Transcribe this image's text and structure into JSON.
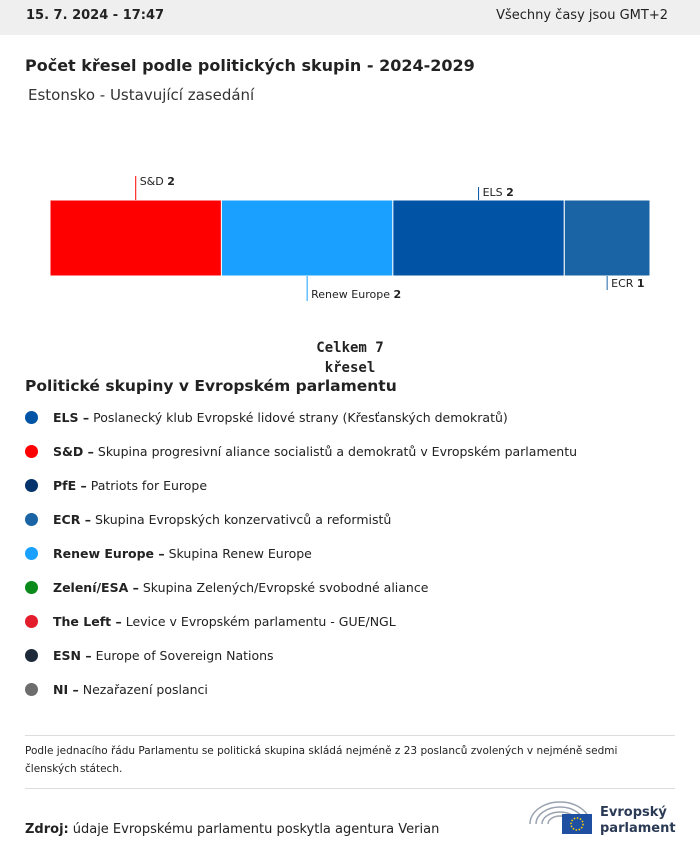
{
  "header": {
    "date": "15. 7. 2024 - 17:47",
    "timezone": "Všechny časy jsou GMT+2"
  },
  "title": "Počet křesel podle politických skupin - 2024-2029",
  "subtitle": "Estonsko - Ustavující zasedání",
  "chart_data": {
    "type": "bar",
    "stacked": true,
    "orientation": "horizontal",
    "series": [
      {
        "name": "S&D",
        "color": "#ff0000",
        "values": [
          2
        ]
      },
      {
        "name": "Renew Europe",
        "color": "#1aa0ff",
        "values": [
          2
        ]
      },
      {
        "name": "ELS",
        "color": "#0053a5",
        "values": [
          2
        ]
      },
      {
        "name": "ECR",
        "color": "#1a64a6",
        "values": [
          1
        ]
      }
    ]
  },
  "total": "Celkem 7 křesel",
  "legend": {
    "title": "Politické skupiny v Evropském parlamentu",
    "items": [
      {
        "abbr": "ELS –",
        "text": "Poslanecký klub Evropské lidové strany (Křesťanských demokratů)",
        "color": "#0053a5"
      },
      {
        "abbr": "S&D –",
        "text": "Skupina progresivní aliance socialistů a demokratů v Evropském parlamentu",
        "color": "#ff0000"
      },
      {
        "abbr": "PfE –",
        "text": "Patriots for Europe",
        "color": "#05336b"
      },
      {
        "abbr": "ECR –",
        "text": "Skupina Evropských konzervativců a reformistů",
        "color": "#1a64a6"
      },
      {
        "abbr": "Renew Europe –",
        "text": "Skupina Renew Europe",
        "color": "#1aa0ff"
      },
      {
        "abbr": "Zelení/ESA –",
        "text": "Skupina Zelených/Evropské svobodné aliance",
        "color": "#098a1a"
      },
      {
        "abbr": "The Left –",
        "text": "Levice v Evropském parlamentu - GUE/NGL",
        "color": "#e31d2b"
      },
      {
        "abbr": "ESN –",
        "text": "Europe of Sovereign Nations",
        "color": "#1e2a3a"
      },
      {
        "abbr": "NI –",
        "text": "Nezařazení poslanci",
        "color": "#6d6d6d"
      }
    ]
  },
  "footnote": "Podle jednacího řádu Parlamentu se politická skupina skládá nejméně z 23 poslanců zvolených v nejméně sedmi členských státech.",
  "source": {
    "label": "Zdroj:",
    "text": "údaje Evropskému parlamentu poskytla agentura Verian"
  },
  "logo": "Evropský parlament"
}
